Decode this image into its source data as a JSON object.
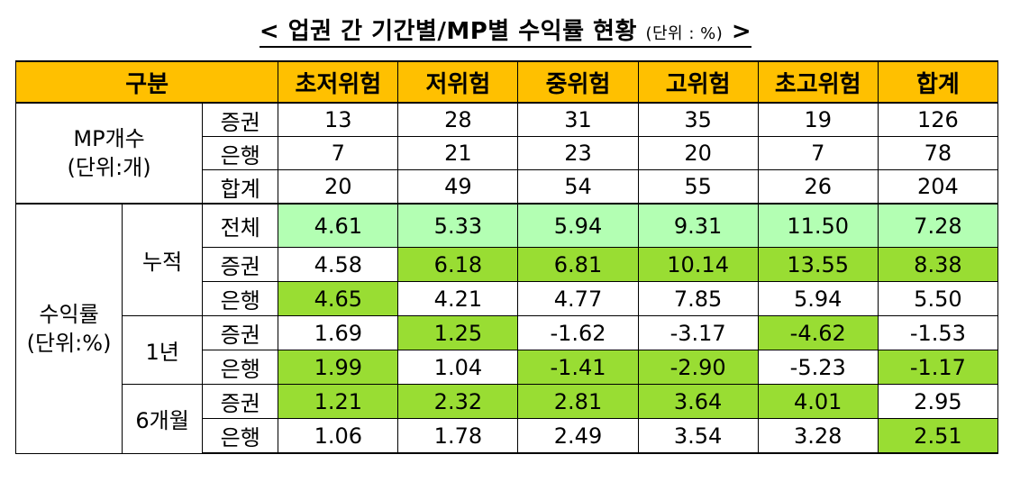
{
  "title": {
    "main": "< 업권 간 기간별/MP별 수익률 현황",
    "unit": "(단위 : %)",
    "close": ">"
  },
  "header": {
    "group": "구분",
    "columns": [
      "초저위험",
      "저위험",
      "중위험",
      "고위험",
      "초고위험",
      "합계"
    ]
  },
  "mp_count": {
    "label_line1": "MP개수",
    "label_line2": "(단위:개)",
    "rows": [
      {
        "name": "증권",
        "values": [
          "13",
          "28",
          "31",
          "35",
          "19",
          "126"
        ]
      },
      {
        "name": "은행",
        "values": [
          "7",
          "21",
          "23",
          "20",
          "7",
          "78"
        ]
      },
      {
        "name": "합계",
        "values": [
          "20",
          "49",
          "54",
          "55",
          "26",
          "204"
        ]
      }
    ]
  },
  "returns": {
    "label_line1": "수익률",
    "label_line2": "(단위:%)",
    "periods": [
      {
        "name": "누적",
        "rows": [
          {
            "name": "전체",
            "values": [
              "4.61",
              "5.33",
              "5.94",
              "9.31",
              "11.50",
              "7.28"
            ]
          },
          {
            "name": "증권",
            "values": [
              "4.58",
              "6.18",
              "6.81",
              "10.14",
              "13.55",
              "8.38"
            ]
          },
          {
            "name": "은행",
            "values": [
              "4.65",
              "4.21",
              "4.77",
              "7.85",
              "5.94",
              "5.50"
            ]
          }
        ]
      },
      {
        "name": "1년",
        "rows": [
          {
            "name": "증권",
            "values": [
              "1.69",
              "1.25",
              "-1.62",
              "-3.17",
              "-4.62",
              "-1.53"
            ]
          },
          {
            "name": "은행",
            "values": [
              "1.99",
              "1.04",
              "-1.41",
              "-2.90",
              "-5.23",
              "-1.17"
            ]
          }
        ]
      },
      {
        "name": "6개월",
        "rows": [
          {
            "name": "증권",
            "values": [
              "1.21",
              "2.32",
              "2.81",
              "3.64",
              "4.01",
              "2.95"
            ]
          },
          {
            "name": "은행",
            "values": [
              "1.06",
              "1.78",
              "2.49",
              "3.54",
              "3.28",
              "2.51"
            ]
          }
        ]
      }
    ]
  },
  "colors": {
    "header_bg": "#ffc000",
    "highlight_light_green": "#b3ffb3",
    "highlight_green": "#99dd33"
  }
}
